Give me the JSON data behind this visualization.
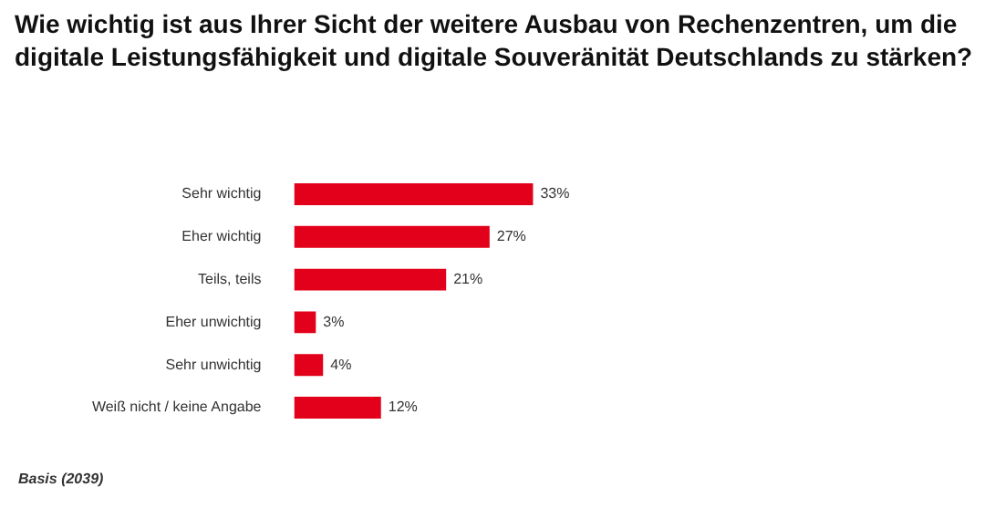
{
  "chart_data": {
    "type": "bar",
    "orientation": "horizontal",
    "title": "Wie wichtig ist aus Ihrer Sicht der weitere Ausbau von Rechenzentren, um die digitale Leistungsfähigkeit und digitale Souveränität Deutschlands zu stärken?",
    "categories": [
      "Sehr wichtig",
      "Eher wichtig",
      "Teils, teils",
      "Eher unwichtig",
      "Sehr unwichtig",
      "Weiß nicht / keine Angabe"
    ],
    "values": [
      33,
      27,
      21,
      3,
      4,
      12
    ],
    "value_labels": [
      "33%",
      "27%",
      "21%",
      "3%",
      "4%",
      "12%"
    ],
    "color": "#e2001a",
    "annotations": [
      "Basis (2039)"
    ]
  }
}
